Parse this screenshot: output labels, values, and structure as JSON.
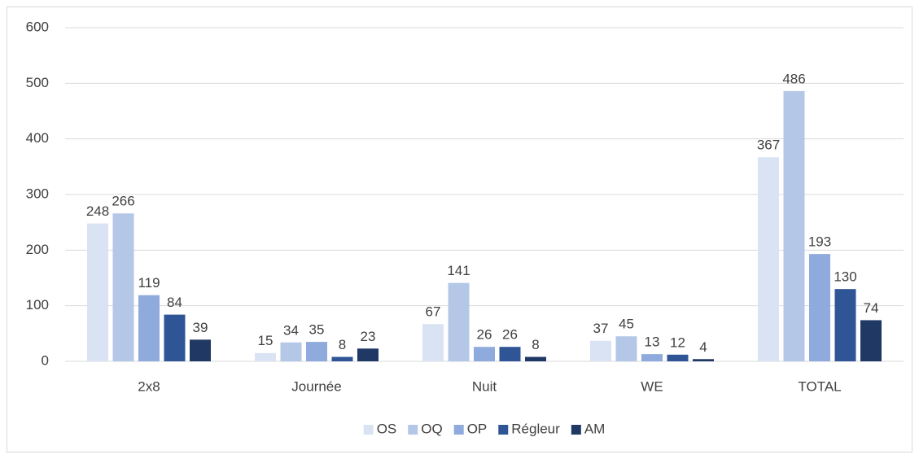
{
  "chart_data": {
    "type": "bar",
    "categories": [
      "2x8",
      "Journée",
      "Nuit",
      "WE",
      "TOTAL"
    ],
    "series": [
      {
        "name": "OS",
        "color": "#dae3f3",
        "values": [
          248,
          15,
          67,
          37,
          367
        ]
      },
      {
        "name": "OQ",
        "color": "#b4c7e7",
        "values": [
          266,
          34,
          141,
          45,
          486
        ]
      },
      {
        "name": "OP",
        "color": "#8faadc",
        "values": [
          119,
          35,
          26,
          13,
          193
        ]
      },
      {
        "name": "Régleur",
        "color": "#2f5597",
        "values": [
          84,
          8,
          26,
          12,
          130
        ]
      },
      {
        "name": "AM",
        "color": "#203864",
        "values": [
          39,
          23,
          8,
          4,
          74
        ]
      }
    ],
    "ylim": [
      0,
      600
    ],
    "yticks": [
      0,
      100,
      200,
      300,
      400,
      500,
      600
    ],
    "grid": true,
    "legend": "bottom"
  }
}
